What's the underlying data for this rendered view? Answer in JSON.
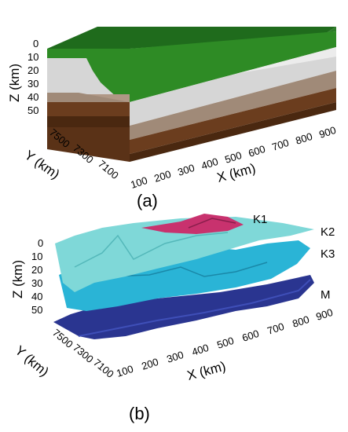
{
  "panel_a": {
    "label": "(a)",
    "z_axis": {
      "title": "Z (km)",
      "ticks": [
        "0",
        "10",
        "20",
        "30",
        "40",
        "50"
      ]
    },
    "y_axis": {
      "title": "Y (km)",
      "ticks": [
        "7500",
        "7300",
        "7100"
      ]
    },
    "x_axis": {
      "title": "X (km)",
      "ticks": [
        "100",
        "200",
        "300",
        "400",
        "500",
        "600",
        "700",
        "800",
        "900"
      ]
    },
    "layer_colors": {
      "top": "#1f6b1c",
      "green": "#2e8b25",
      "light_gray": "#d6d6d6",
      "tan": "#a08a78",
      "brown": "#6b3d1e",
      "dark_brown": "#4a2810"
    }
  },
  "panel_b": {
    "label": "(b)",
    "z_axis": {
      "title": "Z (km)",
      "ticks": [
        "0",
        "10",
        "20",
        "30",
        "40",
        "50"
      ]
    },
    "y_axis": {
      "title": "Y (km)",
      "ticks": [
        "7500",
        "7300",
        "7100"
      ]
    },
    "x_axis": {
      "title": "X (km)",
      "ticks": [
        "100",
        "200",
        "300",
        "400",
        "500",
        "600",
        "700",
        "800",
        "900"
      ]
    },
    "surfaces": [
      {
        "name": "K1",
        "color": "#c8326e"
      },
      {
        "name": "K2",
        "color": "#7fd8d8"
      },
      {
        "name": "K3",
        "color": "#2ab4d6"
      },
      {
        "name": "M",
        "color": "#2a3590"
      }
    ]
  }
}
